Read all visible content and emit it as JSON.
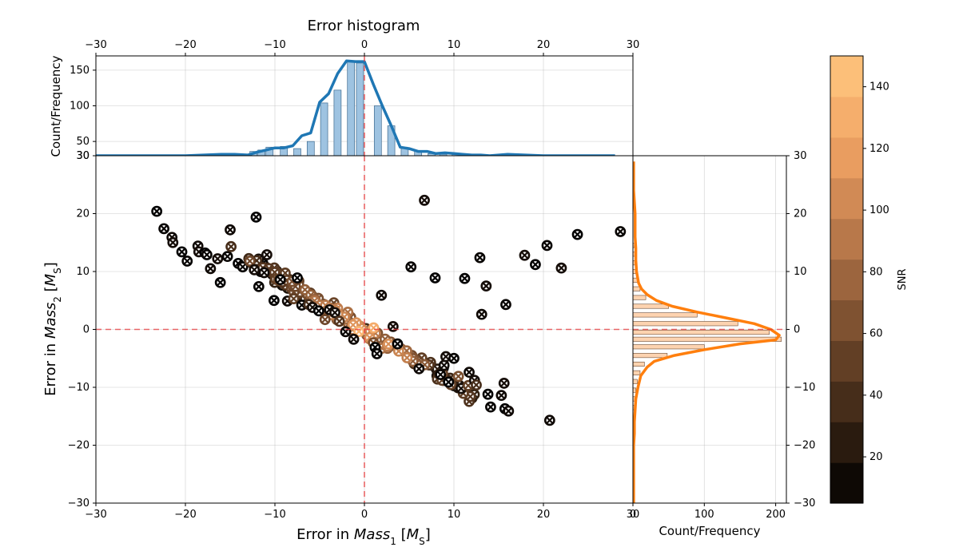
{
  "colors": {
    "ref_line": "#e8383b",
    "top_hist_fill": "#9ec3e1",
    "top_line": "#1f77b4",
    "right_hist_fill": "#fdd3b0",
    "right_line": "#ff7f0e",
    "marker_edge_dark": "#000000"
  },
  "colormap": {
    "name": "copper",
    "stops": [
      "#000000",
      "#3d2716",
      "#7c5030",
      "#bb7a4b",
      "#f0a263",
      "#ffc77f"
    ]
  },
  "chart_data": [
    {
      "id": "scatter",
      "type": "scatter",
      "xlabel": "Error in Mass1 [MS]",
      "xlabel_parts": {
        "prefix": "Error in ",
        "var": "Mass",
        "sub": "1",
        "unit_open": " [",
        "unit": "M",
        "unit_sub": "S",
        "unit_close": "]"
      },
      "ylabel": "Error in Mass2 [MS]",
      "ylabel_parts": {
        "prefix": "Error in ",
        "var": "Mass",
        "sub": "2",
        "unit_open": " [",
        "unit": "M",
        "unit_sub": "S",
        "unit_close": "]"
      },
      "xlim": [
        -30,
        30
      ],
      "ylim": [
        -30,
        30
      ],
      "xticks": [
        "−30",
        "−20",
        "−10",
        "0",
        "10",
        "20",
        "30"
      ],
      "yticks": [
        "−30",
        "−20",
        "−10",
        "0",
        "10",
        "20",
        "30"
      ],
      "grid": true,
      "reference_lines": {
        "x": 0,
        "y": 0
      },
      "marker": "circle-x",
      "color_by": "SNR",
      "outliers": [
        [
          -23.2,
          20.4
        ],
        [
          -22.4,
          17.4
        ],
        [
          -21.5,
          15.9
        ],
        [
          -21.4,
          15.0
        ],
        [
          -20.4,
          13.4
        ],
        [
          -19.8,
          11.8
        ],
        [
          -18.6,
          14.4
        ],
        [
          -18.5,
          13.4
        ],
        [
          -17.8,
          13.2
        ],
        [
          -17.6,
          12.9
        ],
        [
          -17.2,
          10.5
        ],
        [
          -16.4,
          12.2
        ],
        [
          -16.1,
          8.1
        ],
        [
          -15.3,
          12.6
        ],
        [
          -15.0,
          17.2
        ],
        [
          -14.9,
          14.3
        ],
        [
          -14.1,
          11.4
        ],
        [
          -13.6,
          10.8
        ],
        [
          -12.8,
          11.8
        ],
        [
          -12.3,
          10.3
        ],
        [
          -12.1,
          19.4
        ],
        [
          -11.8,
          7.4
        ],
        [
          -11.2,
          9.8
        ],
        [
          -10.9,
          12.9
        ],
        [
          -10.1,
          5.0
        ],
        [
          -9.4,
          8.6
        ],
        [
          -8.6,
          4.9
        ],
        [
          -7.9,
          5.3
        ],
        [
          -7.5,
          8.9
        ],
        [
          -7.0,
          4.2
        ],
        [
          -6.2,
          4.3
        ],
        [
          -5.8,
          3.8
        ],
        [
          -5.1,
          3.2
        ],
        [
          -4.4,
          1.7
        ],
        [
          -3.9,
          3.4
        ],
        [
          -3.3,
          2.9
        ],
        [
          -2.8,
          1.4
        ],
        [
          -2.1,
          -0.4
        ],
        [
          -1.2,
          -1.7
        ],
        [
          1.0,
          -2.3
        ],
        [
          1.2,
          -3.1
        ],
        [
          1.4,
          -4.2
        ],
        [
          1.9,
          5.9
        ],
        [
          3.2,
          0.5
        ],
        [
          3.7,
          -2.5
        ],
        [
          5.2,
          10.8
        ],
        [
          6.1,
          -6.8
        ],
        [
          6.7,
          22.3
        ],
        [
          7.9,
          8.9
        ],
        [
          8.5,
          -7.8
        ],
        [
          8.9,
          -6.2
        ],
        [
          9.1,
          -4.7
        ],
        [
          9.4,
          -9.1
        ],
        [
          10.0,
          -5.0
        ],
        [
          10.5,
          -8.1
        ],
        [
          10.8,
          -10.2
        ],
        [
          11.2,
          8.8
        ],
        [
          11.6,
          -9.7
        ],
        [
          11.7,
          -7.4
        ],
        [
          12.3,
          -8.8
        ],
        [
          12.5,
          -9.6
        ],
        [
          12.9,
          12.4
        ],
        [
          13.1,
          2.6
        ],
        [
          13.6,
          7.5
        ],
        [
          13.8,
          -11.2
        ],
        [
          14.1,
          -13.4
        ],
        [
          15.3,
          -11.4
        ],
        [
          15.6,
          -9.3
        ],
        [
          15.7,
          -13.7
        ],
        [
          15.8,
          4.3
        ],
        [
          16.1,
          -14.1
        ],
        [
          17.9,
          12.8
        ],
        [
          19.1,
          11.2
        ],
        [
          20.4,
          14.5
        ],
        [
          20.7,
          -15.7
        ],
        [
          22.0,
          10.6
        ],
        [
          23.8,
          16.4
        ],
        [
          28.6,
          16.9
        ]
      ],
      "band": {
        "relation": "y = -0.93 * x",
        "x_range": [
          -12,
          12
        ],
        "count": 230,
        "scatter_sd": 0.9,
        "snr_range": [
          5,
          150
        ]
      }
    },
    {
      "id": "top-histogram",
      "type": "bar",
      "title": "Error histogram",
      "ylabel": "Count/Frequency",
      "xlim": [
        -30,
        30
      ],
      "ylim": [
        30,
        170
      ],
      "xticks": [
        "−30",
        "−20",
        "−10",
        "0",
        "10",
        "20",
        "30"
      ],
      "yticks": [
        "30",
        "50",
        "100",
        "150"
      ],
      "bar_width": 0.8,
      "bars": [
        {
          "x": -16.0,
          "value": 31
        },
        {
          "x": -15.1,
          "value": 32
        },
        {
          "x": -14.2,
          "value": 31
        },
        {
          "x": -12.4,
          "value": 36
        },
        {
          "x": -11.5,
          "value": 38
        },
        {
          "x": -10.6,
          "value": 42
        },
        {
          "x": -9.0,
          "value": 43
        },
        {
          "x": -7.5,
          "value": 40
        },
        {
          "x": -6.0,
          "value": 50
        },
        {
          "x": -4.5,
          "value": 104
        },
        {
          "x": -3.0,
          "value": 122
        },
        {
          "x": -1.5,
          "value": 162
        },
        {
          "x": -0.5,
          "value": 160
        },
        {
          "x": 1.5,
          "value": 100
        },
        {
          "x": 3.0,
          "value": 72
        },
        {
          "x": 4.5,
          "value": 40
        },
        {
          "x": 6.0,
          "value": 37
        },
        {
          "x": 7.5,
          "value": 33
        },
        {
          "x": 8.8,
          "value": 32
        },
        {
          "x": 10.2,
          "value": 32
        },
        {
          "x": 11.4,
          "value": 31
        },
        {
          "x": 12.5,
          "value": 30
        }
      ],
      "kde": {
        "x": [
          -30,
          -26,
          -23,
          -20,
          -18,
          -16,
          -14.5,
          -13,
          -12,
          -11,
          -10,
          -9,
          -8,
          -7,
          -6,
          -5,
          -4,
          -3,
          -2,
          -1,
          0,
          1,
          2,
          3,
          4,
          5,
          6,
          7,
          8,
          9,
          10,
          11,
          12,
          13,
          14,
          15,
          16,
          18,
          20,
          22,
          24,
          26,
          28
        ],
        "y": [
          30,
          30,
          30,
          30,
          31,
          32,
          32,
          31,
          35,
          38,
          41,
          41,
          44,
          58,
          62,
          105,
          117,
          145,
          163,
          162,
          162,
          130,
          100,
          72,
          42,
          40,
          36,
          36,
          33,
          34,
          33,
          32,
          31,
          31,
          30,
          31,
          32,
          31,
          30,
          30,
          30,
          30,
          30
        ]
      }
    },
    {
      "id": "right-histogram",
      "type": "bar",
      "orientation": "horizontal",
      "xlabel": "Count/Frequency",
      "xlim": [
        0,
        215
      ],
      "ylim": [
        -30,
        30
      ],
      "xticks": [
        "0",
        "100",
        "200"
      ],
      "yticks": [
        "−30",
        "−20",
        "−10",
        "0",
        "10",
        "20",
        "30"
      ],
      "bar_height": 0.75,
      "bars": [
        {
          "y": 14.5,
          "value": 2
        },
        {
          "y": 13.0,
          "value": 3
        },
        {
          "y": 11.5,
          "value": 3
        },
        {
          "y": 10.0,
          "value": 5
        },
        {
          "y": 8.5,
          "value": 7
        },
        {
          "y": 7.0,
          "value": 10
        },
        {
          "y": 5.5,
          "value": 18
        },
        {
          "y": 4.0,
          "value": 50
        },
        {
          "y": 2.5,
          "value": 90
        },
        {
          "y": 1.0,
          "value": 147
        },
        {
          "y": -0.5,
          "value": 191
        },
        {
          "y": -1.7,
          "value": 208
        },
        {
          "y": -3.0,
          "value": 100
        },
        {
          "y": -4.5,
          "value": 48
        },
        {
          "y": -6.0,
          "value": 16
        },
        {
          "y": -7.5,
          "value": 10
        },
        {
          "y": -9.0,
          "value": 6
        },
        {
          "y": -10.5,
          "value": 4
        },
        {
          "y": -12.0,
          "value": 3
        },
        {
          "y": -13.5,
          "value": 2
        }
      ],
      "kde": {
        "y": [
          29,
          28,
          26,
          24,
          22,
          20,
          18,
          16,
          14,
          12,
          10,
          8,
          7,
          6,
          5,
          4,
          3,
          2,
          1,
          0,
          -1,
          -1.8,
          -2.5,
          -3.5,
          -4.5,
          -5.5,
          -6.5,
          -8,
          -10,
          -12,
          -14,
          -16,
          -18,
          -20,
          -22,
          -24,
          -26,
          -28,
          -30
        ],
        "x": [
          1,
          1,
          1,
          1,
          2,
          3,
          3,
          3,
          4,
          4,
          5,
          8,
          12,
          20,
          33,
          55,
          90,
          130,
          170,
          193,
          205,
          200,
          150,
          100,
          58,
          30,
          20,
          11,
          7,
          4,
          3,
          2,
          2,
          1,
          1,
          1,
          1,
          1,
          1
        ]
      }
    },
    {
      "id": "colorbar",
      "type": "colorbar",
      "label": "SNR",
      "range": [
        5,
        150
      ],
      "ticks": [
        20,
        40,
        60,
        80,
        100,
        120,
        140
      ],
      "bands": 11
    }
  ]
}
